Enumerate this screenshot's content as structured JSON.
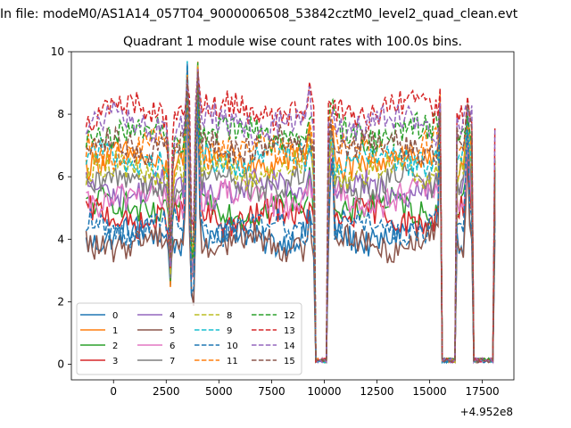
{
  "figure": {
    "suptitle": "In file: modeM0/AS1A14_057T04_9000006508_53842cztM0_level2_quad_clean.evt"
  },
  "chart_data": {
    "type": "line",
    "title": "Quadrant 1 module wise count rates with 100.0s bins.",
    "xlabel": "",
    "ylabel": "",
    "x_offset_label": "+4.952e8",
    "xlim": [
      -2000,
      19000
    ],
    "ylim": [
      -0.5,
      10
    ],
    "x_ticks": [
      0,
      2500,
      5000,
      7500,
      10000,
      12500,
      15000,
      17500
    ],
    "x_tick_labels": [
      "0",
      "2500",
      "5000",
      "7500",
      "10000",
      "12500",
      "15000",
      "17500"
    ],
    "y_ticks": [
      0,
      2,
      4,
      6,
      8,
      10
    ],
    "y_tick_labels": [
      "0",
      "2",
      "4",
      "6",
      "8",
      "10"
    ],
    "legend_position": "lower-left",
    "legend_columns": 4,
    "x_range_data": [
      -1300,
      18100
    ],
    "gaps": [
      [
        9550,
        10150
      ],
      [
        15600,
        16200
      ],
      [
        17050,
        18000
      ]
    ],
    "series": [
      {
        "name": "0",
        "color": "#1f77b4",
        "dash": "solid",
        "base": 4.1
      },
      {
        "name": "1",
        "color": "#ff7f0e",
        "dash": "solid",
        "base": 6.5
      },
      {
        "name": "2",
        "color": "#2ca02c",
        "dash": "solid",
        "base": 5.0
      },
      {
        "name": "3",
        "color": "#d62728",
        "dash": "solid",
        "base": 4.7
      },
      {
        "name": "4",
        "color": "#9467bd",
        "dash": "solid",
        "base": 5.6
      },
      {
        "name": "5",
        "color": "#8c564b",
        "dash": "solid",
        "base": 3.9
      },
      {
        "name": "6",
        "color": "#e377c2",
        "dash": "solid",
        "base": 5.3
      },
      {
        "name": "7",
        "color": "#7f7f7f",
        "dash": "solid",
        "base": 5.8
      },
      {
        "name": "8",
        "color": "#bcbd22",
        "dash": "dashed",
        "base": 6.2
      },
      {
        "name": "9",
        "color": "#17becf",
        "dash": "dashed",
        "base": 6.6
      },
      {
        "name": "10",
        "color": "#1f77b4",
        "dash": "dashed",
        "base": 4.4
      },
      {
        "name": "11",
        "color": "#ff7f0e",
        "dash": "dashed",
        "base": 6.9
      },
      {
        "name": "12",
        "color": "#2ca02c",
        "dash": "dashed",
        "base": 7.4
      },
      {
        "name": "13",
        "color": "#d62728",
        "dash": "dashed",
        "base": 8.1
      },
      {
        "name": "14",
        "color": "#9467bd",
        "dash": "dashed",
        "base": 7.7
      },
      {
        "name": "15",
        "color": "#8c564b",
        "dash": "dashed",
        "base": 7.0
      }
    ]
  }
}
